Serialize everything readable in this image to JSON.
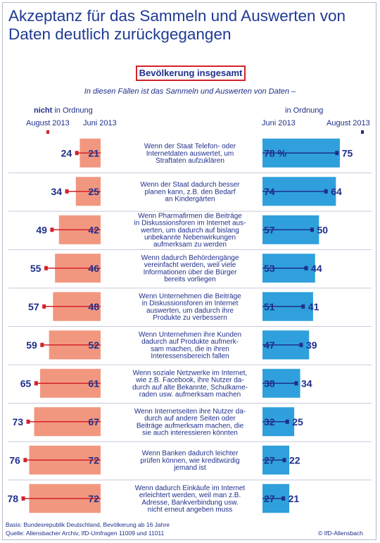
{
  "title": "Akzeptanz für das Sammeln und Auswerten von Daten deutlich zurückgegangen",
  "subtitle": "Bevölkerung insgesamt",
  "question": "In diesen Fällen ist das Sammeln und Auswerten von Daten –",
  "headers": {
    "left_bold": "nicht",
    "left_rest": " in Ordnung",
    "right": "in Ordnung",
    "left_aug": "August 2013",
    "left_jun": "Juni 2013",
    "right_jun": "Juni 2013",
    "right_aug": "August 2013"
  },
  "colors": {
    "title": "#1f3a93",
    "label_text": "#1f2f8a",
    "not_ok_bar": "#f2977f",
    "ok_bar": "#2fa0dc",
    "not_ok_marker": "#d2232a",
    "ok_marker": "#1f2f8a",
    "row_separator": "#c9c9dd",
    "accent_box": "#d2232a"
  },
  "footer": {
    "basis": "Basis: Bundesrepublik Deutschland, Bevölkerung ab 16 Jahre",
    "source": "Quelle: Allensbacher Archiv, IfD-Umfragen 11009 und 11011",
    "copyright": "© IfD-Allensbach"
  },
  "chart_data": {
    "type": "bar",
    "title": "Akzeptanz für das Sammeln und Auswerten von Daten deutlich zurückgegangen",
    "unit": "%",
    "series_meta": {
      "not_ok": {
        "name": "nicht in Ordnung",
        "bars": "Juni 2013",
        "markers": "August 2013"
      },
      "ok": {
        "name": "in Ordnung",
        "bars": "Juni 2013",
        "markers": "August 2013"
      }
    },
    "categories": [
      [
        "Wenn der Staat Telefon- oder",
        "Internetdaten auswertet, um",
        "Straftaten aufzuklären"
      ],
      [
        "Wenn der Staat dadurch besser",
        "planen kann, z.B. den Bedarf",
        "an Kindergärten"
      ],
      [
        "Wenn Pharmafirmen die Beiträge",
        "in Diskussionsforen im Internet aus-",
        "werten, um dadurch auf bislang",
        "unbekannte Nebenwirkungen",
        "aufmerksam zu werden"
      ],
      [
        "Wenn dadurch Behördengänge",
        "vereinfacht werden, weil viele",
        "Informationen über die Bürger",
        "bereits vorliegen"
      ],
      [
        "Wenn Unternehmen die Beiträge",
        "in Diskussionsforen im Internet",
        "auswerten, um dadurch ihre",
        "Produkte zu verbessern"
      ],
      [
        "Wenn Unternehmen ihre Kunden",
        "dadurch auf Produkte aufmerk-",
        "sam machen, die in ihren",
        "Interessensbereich fallen"
      ],
      [
        "Wenn soziale Netzwerke im Internet,",
        "wie z.B. Facebook, ihre Nutzer da-",
        "durch auf alte Bekannte, Schulkame-",
        "raden usw. aufmerksam machen"
      ],
      [
        "Wenn Internetseiten ihre Nutzer da-",
        "durch auf andere Seiten oder",
        "Beiträge aufmerksam machen, die",
        "sie auch interessieren könnten"
      ],
      [
        "Wenn Banken dadurch leichter",
        "prüfen können, wie kreditwürdig",
        "jemand ist"
      ],
      [
        "Wenn dadurch Einkäufe im Internet",
        "erleichtert werden, weil man z.B.",
        "Adresse, Bankverbindung usw.",
        "nicht erneut angeben muss"
      ]
    ],
    "not_ok_juni2013": [
      21,
      25,
      42,
      46,
      48,
      52,
      61,
      67,
      72,
      72
    ],
    "not_ok_august2013": [
      24,
      34,
      49,
      55,
      57,
      59,
      65,
      73,
      76,
      78
    ],
    "ok_juni2013": [
      78,
      74,
      57,
      53,
      51,
      47,
      38,
      32,
      27,
      27
    ],
    "ok_august2013": [
      75,
      64,
      50,
      44,
      41,
      39,
      34,
      25,
      22,
      21
    ],
    "ok_juni2013_labels": [
      "78 %",
      "74",
      "57",
      "53",
      "51",
      "47",
      "38",
      "32",
      "27",
      "27"
    ]
  }
}
